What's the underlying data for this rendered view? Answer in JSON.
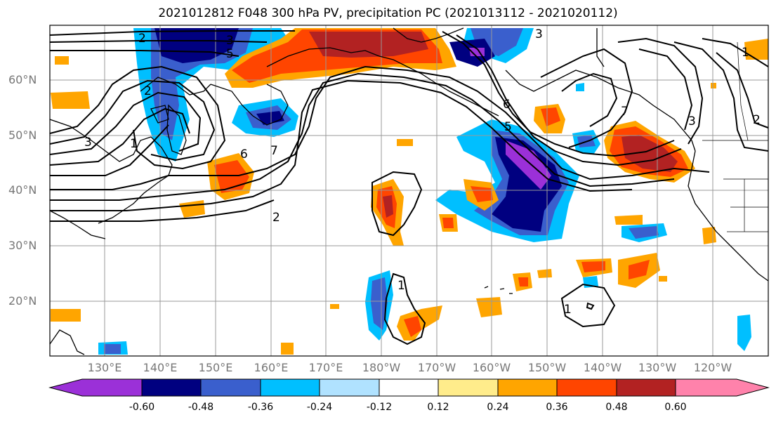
{
  "title": "2021012812 F048 300 hPa PV, precipitation PC (2021013112 - 2021020112)",
  "lat_labels": [
    "60°N",
    "50°N",
    "40°N",
    "30°N",
    "20°N"
  ],
  "lon_labels": [
    "130°E",
    "140°E",
    "150°E",
    "160°E",
    "170°E",
    "180°W",
    "170°W",
    "160°W",
    "150°W",
    "140°W",
    "130°W",
    "120°W"
  ],
  "colorbar": {
    "colors": [
      "#9b30d8",
      "#000080",
      "#3a5fcd",
      "#00bfff",
      "#b0e2ff",
      "#ffffff",
      "#ffec8b",
      "#ffa500",
      "#ff4500",
      "#b22222",
      "#ff82ab"
    ],
    "labels": [
      "-0.60",
      "-0.48",
      "-0.36",
      "-0.24",
      "-0.12",
      "0.12",
      "0.24",
      "0.36",
      "0.48",
      "0.60"
    ]
  },
  "contour_labels": [
    "2",
    "3",
    "5",
    "3",
    "1",
    "6",
    "7",
    "6",
    "5",
    "7",
    "3",
    "2",
    "2",
    "3",
    "1",
    "1",
    "1",
    "2"
  ]
}
